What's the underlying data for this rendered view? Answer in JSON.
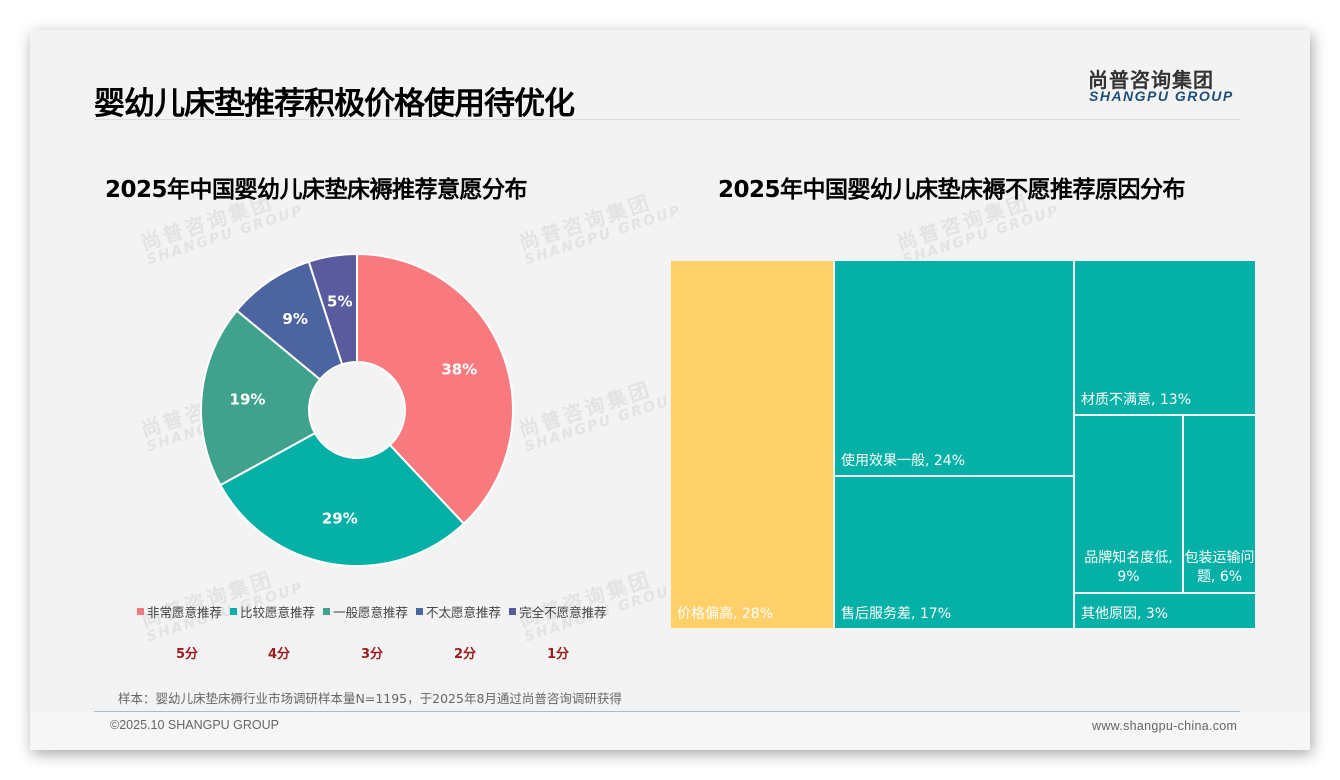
{
  "header": {
    "title": "婴幼儿床垫推荐积极价格使用待优化",
    "logo_cn": "尚普咨询集团",
    "logo_en": "SHANGPU GROUP"
  },
  "watermark": {
    "cn": "尚普咨询集团",
    "en": "SHANGPU GROUP"
  },
  "left_chart": {
    "title": "2025年中国婴幼儿床垫床褥推荐意愿分布",
    "legend": [
      {
        "label": "非常愿意推荐",
        "color": "#f87a7e"
      },
      {
        "label": "比较愿意推荐",
        "color": "#05b0a7"
      },
      {
        "label": "一般愿意推荐",
        "color": "#40a28c"
      },
      {
        "label": "不太愿意推荐",
        "color": "#4c65a0"
      },
      {
        "label": "完全不愿意推荐",
        "color": "#5a5a9e"
      }
    ],
    "scores": [
      "5分",
      "4分",
      "3分",
      "2分",
      "1分"
    ]
  },
  "right_chart": {
    "title": "2025年中国婴幼儿床垫床褥不愿推荐原因分布"
  },
  "chart_data": [
    {
      "type": "pie",
      "title": "2025年中国婴幼儿床垫床褥推荐意愿分布",
      "donut": true,
      "categories": [
        "非常愿意推荐",
        "比较愿意推荐",
        "一般愿意推荐",
        "不太愿意推荐",
        "完全不愿意推荐"
      ],
      "values": [
        38,
        29,
        19,
        9,
        5
      ],
      "labels": [
        "38%",
        "29%",
        "19%",
        "9%",
        "5%"
      ],
      "colors": [
        "#f87a7e",
        "#05b0a7",
        "#40a28c",
        "#4c65a0",
        "#5a5a9e"
      ],
      "legend_position": "bottom",
      "score_labels": [
        "5分",
        "4分",
        "3分",
        "2分",
        "1分"
      ]
    },
    {
      "type": "treemap",
      "title": "2025年中国婴幼儿床垫床褥不愿推荐原因分布",
      "categories": [
        "价格偏高",
        "使用效果一般",
        "售后服务差",
        "材质不满意",
        "品牌知名度低",
        "包装运输问题",
        "其他原因"
      ],
      "values": [
        28,
        24,
        17,
        13,
        9,
        6,
        3
      ],
      "labels": [
        "价格偏高, 28%",
        "使用效果一般, 24%",
        "售后服务差, 17%",
        "材质不满意, 13%",
        "品牌知名度低, 9%",
        "包装运输问题, 6%",
        "其他原因, 3%"
      ],
      "colors": {
        "highlight": "#ffd06a",
        "default": "#05b0a7"
      }
    }
  ],
  "footer": {
    "note": "样本：婴幼儿床垫床褥行业市场调研样本量N=1195，于2025年8月通过尚普咨询调研获得",
    "copyright": "©2025.10 SHANGPU GROUP",
    "url": "www.shangpu-china.com"
  }
}
